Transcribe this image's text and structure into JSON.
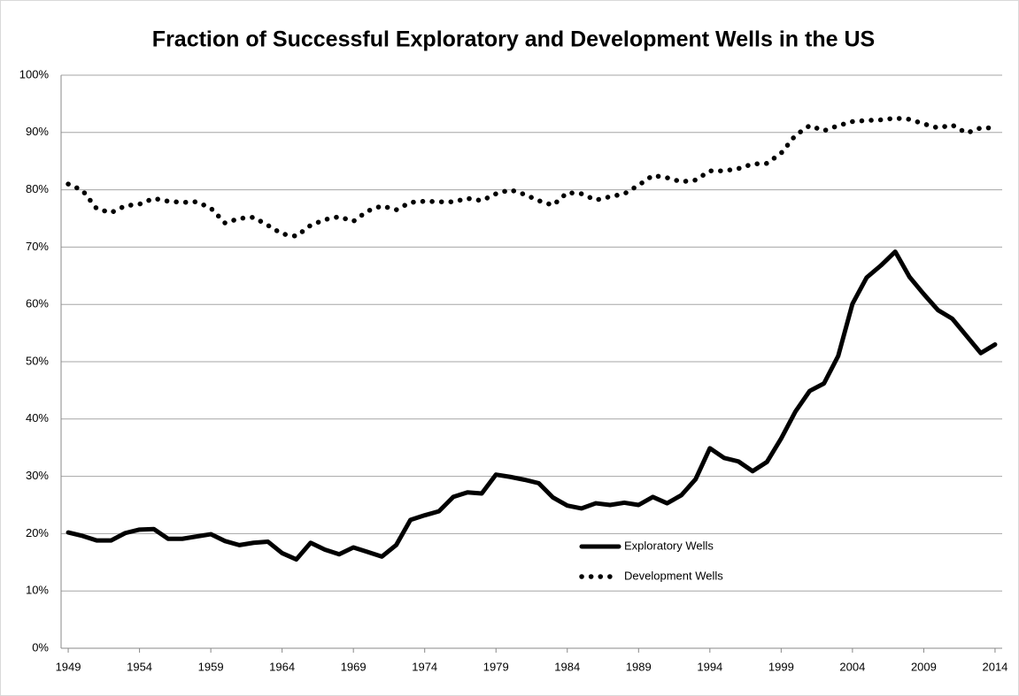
{
  "chart_data": {
    "type": "line",
    "title": "Fraction of Successful Exploratory and Development Wells in the US",
    "x": [
      1949,
      1950,
      1951,
      1952,
      1953,
      1954,
      1955,
      1956,
      1957,
      1958,
      1959,
      1960,
      1961,
      1962,
      1963,
      1964,
      1965,
      1966,
      1967,
      1968,
      1969,
      1970,
      1971,
      1972,
      1973,
      1974,
      1975,
      1976,
      1977,
      1978,
      1979,
      1980,
      1981,
      1982,
      1983,
      1984,
      1985,
      1986,
      1987,
      1988,
      1989,
      1990,
      1991,
      1992,
      1993,
      1994,
      1995,
      1996,
      1997,
      1998,
      1999,
      2000,
      2001,
      2002,
      2003,
      2004,
      2005,
      2006,
      2007,
      2008,
      2009,
      2010,
      2011,
      2012,
      2013,
      2014
    ],
    "series": [
      {
        "name": "Exploratory Wells",
        "color": "#000000",
        "style": "solid",
        "values": [
          20.2,
          19.6,
          18.8,
          18.8,
          20.1,
          20.7,
          20.8,
          19.1,
          19.1,
          19.5,
          19.9,
          18.7,
          18.0,
          18.4,
          18.6,
          16.6,
          15.5,
          18.4,
          17.2,
          16.4,
          17.6,
          16.8,
          16.0,
          18.0,
          22.4,
          23.2,
          23.9,
          26.4,
          27.2,
          27.0,
          30.3,
          29.9,
          29.4,
          28.8,
          26.3,
          24.9,
          24.4,
          25.3,
          25.0,
          25.4,
          25.0,
          26.4,
          25.3,
          26.7,
          29.5,
          34.9,
          33.2,
          32.6,
          30.9,
          32.5,
          36.6,
          41.3,
          44.9,
          46.2,
          51.0,
          60.1,
          64.7,
          66.8,
          69.2,
          64.8,
          61.8,
          59.0,
          57.5,
          54.5,
          51.5,
          53.0
        ]
      },
      {
        "name": "Development Wells",
        "color": "#000000",
        "style": "dotted",
        "values": [
          81.0,
          79.9,
          76.7,
          76.0,
          77.2,
          77.5,
          78.5,
          78.0,
          77.8,
          77.9,
          76.8,
          74.2,
          75.0,
          75.2,
          73.8,
          72.3,
          71.9,
          73.8,
          74.8,
          75.3,
          74.5,
          76.3,
          77.2,
          76.5,
          77.8,
          78.0,
          77.9,
          77.9,
          78.5,
          78.1,
          79.3,
          80.0,
          79.2,
          78.1,
          77.3,
          79.5,
          79.3,
          78.2,
          78.8,
          79.3,
          80.8,
          82.5,
          82.1,
          81.4,
          81.7,
          83.3,
          83.3,
          83.7,
          84.5,
          84.6,
          86.4,
          89.5,
          91.2,
          90.3,
          91.2,
          91.9,
          92.1,
          92.2,
          92.5,
          92.3,
          91.5,
          90.8,
          91.3,
          89.9,
          90.8,
          90.8
        ]
      }
    ],
    "xlim": [
      1948.5,
      2014.5
    ],
    "xticks": [
      1949,
      1954,
      1959,
      1964,
      1969,
      1974,
      1979,
      1984,
      1989,
      1994,
      1999,
      2004,
      2009,
      2014
    ],
    "ylim": [
      0,
      100
    ],
    "yticks": [
      {
        "value": 0,
        "label": "0%"
      },
      {
        "value": 10,
        "label": "10%"
      },
      {
        "value": 20,
        "label": "20%"
      },
      {
        "value": 30,
        "label": "30%"
      },
      {
        "value": 40,
        "label": "40%"
      },
      {
        "value": 50,
        "label": "50%"
      },
      {
        "value": 60,
        "label": "60%"
      },
      {
        "value": 70,
        "label": "70%"
      },
      {
        "value": 80,
        "label": "80%"
      },
      {
        "value": 90,
        "label": "90%"
      },
      {
        "value": 100,
        "label": "100%"
      }
    ],
    "grid": true
  }
}
